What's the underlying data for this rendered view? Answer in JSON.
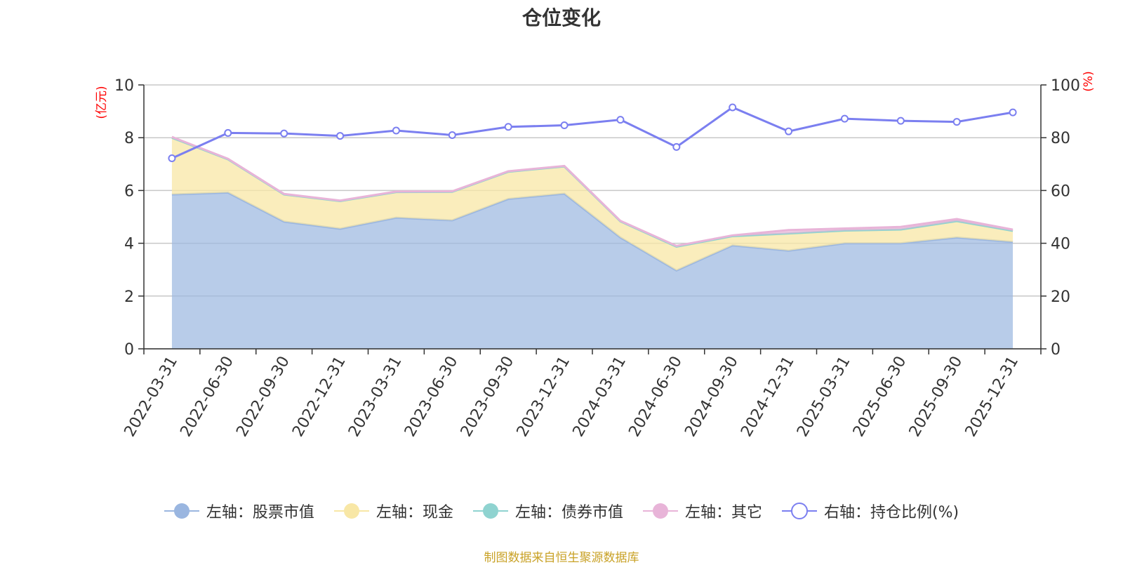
{
  "chart_data": {
    "type": "area+line",
    "title": "仓位变化",
    "left_axis": {
      "unit": "(亿元)",
      "min": 0,
      "max": 10,
      "ticks": [
        0,
        2,
        4,
        6,
        8,
        10
      ]
    },
    "right_axis": {
      "unit": "(%)",
      "min": 0,
      "max": 100,
      "ticks": [
        0,
        20,
        40,
        60,
        80,
        100
      ]
    },
    "categories": [
      "2022-03-31",
      "2022-06-30",
      "2022-09-30",
      "2022-12-31",
      "2023-03-31",
      "2023-06-30",
      "2023-09-30",
      "2023-12-31",
      "2024-03-31",
      "2024-06-30",
      "2024-09-30",
      "2024-12-31",
      "2025-03-31",
      "2025-06-30",
      "2025-09-30",
      "2025-12-31"
    ],
    "series": [
      {
        "name": "左轴：股票市值",
        "axis": "left",
        "type": "stacked-area",
        "color": "#9ab6e0",
        "values": [
          5.85,
          5.92,
          4.82,
          4.55,
          4.97,
          4.87,
          5.68,
          5.88,
          4.22,
          2.97,
          3.92,
          3.72,
          4.0,
          4.0,
          4.22,
          4.05
        ]
      },
      {
        "name": "左轴：现金",
        "axis": "left",
        "type": "stacked-area",
        "color": "#f8e7a6",
        "values": [
          2.15,
          1.26,
          1.03,
          1.05,
          0.97,
          1.08,
          1.03,
          1.03,
          0.61,
          0.9,
          0.35,
          0.65,
          0.48,
          0.52,
          0.62,
          0.42
        ]
      },
      {
        "name": "左轴：债券市值",
        "axis": "left",
        "type": "stacked-area",
        "color": "#8fd3d0",
        "values": [
          0,
          0,
          0,
          0,
          0,
          0,
          0,
          0,
          0,
          0,
          0,
          0,
          0,
          0,
          0,
          0
        ]
      },
      {
        "name": "左轴：其它",
        "axis": "left",
        "type": "stacked-area",
        "color": "#e8b4d8",
        "values": [
          0.03,
          0.02,
          0.02,
          0.02,
          0.02,
          0.02,
          0.02,
          0.02,
          0.02,
          0.03,
          0.03,
          0.13,
          0.08,
          0.1,
          0.08,
          0.05
        ]
      },
      {
        "name": "右轴：持仓比例(%)",
        "axis": "right",
        "type": "line",
        "color": "#7b7ff0",
        "values": [
          72.2,
          81.8,
          81.6,
          80.7,
          82.7,
          81.0,
          84.1,
          84.7,
          86.8,
          76.5,
          91.5,
          82.4,
          87.2,
          86.4,
          86.0,
          89.6
        ]
      }
    ],
    "grid": true,
    "legend_position": "bottom"
  },
  "source_note": "制图数据来自恒生聚源数据库"
}
